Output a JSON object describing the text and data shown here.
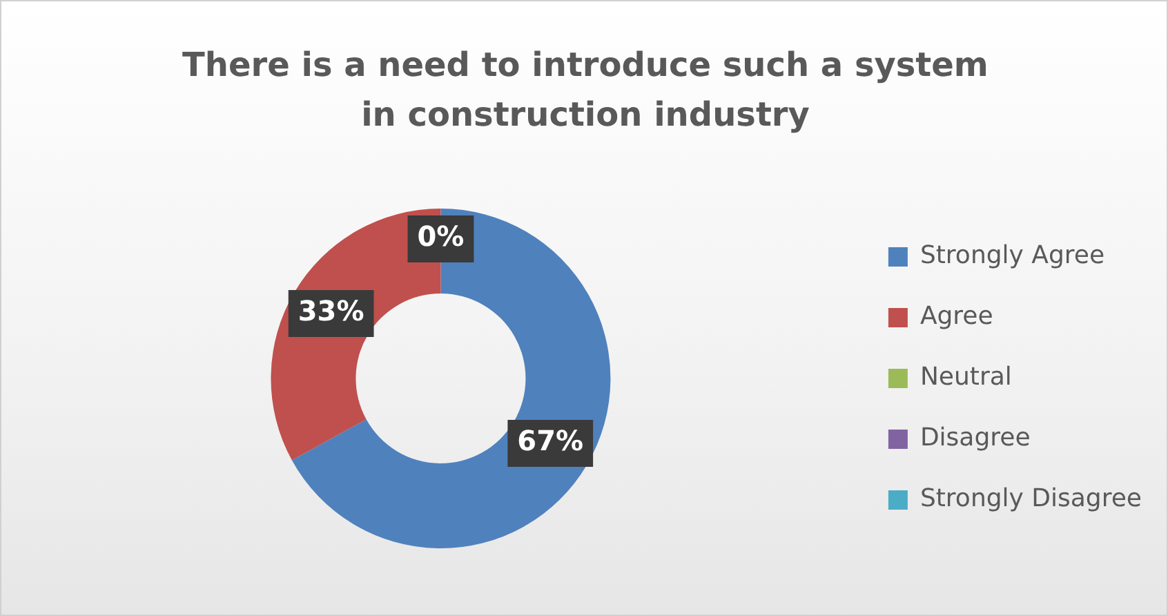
{
  "chart_data": {
    "type": "donut",
    "title": "There is a need to introduce such a system in construction industry",
    "categories": [
      "Strongly Agree",
      "Agree",
      "Neutral",
      "Disagree",
      "Strongly Disagree"
    ],
    "values": [
      67,
      33,
      0,
      0,
      0
    ],
    "colors": [
      "#4f81bd",
      "#c0504d",
      "#9bbb59",
      "#8064a2",
      "#4bacc6"
    ],
    "value_labels": [
      "67%",
      "33%",
      "0%",
      null,
      null
    ],
    "legend": "right"
  }
}
